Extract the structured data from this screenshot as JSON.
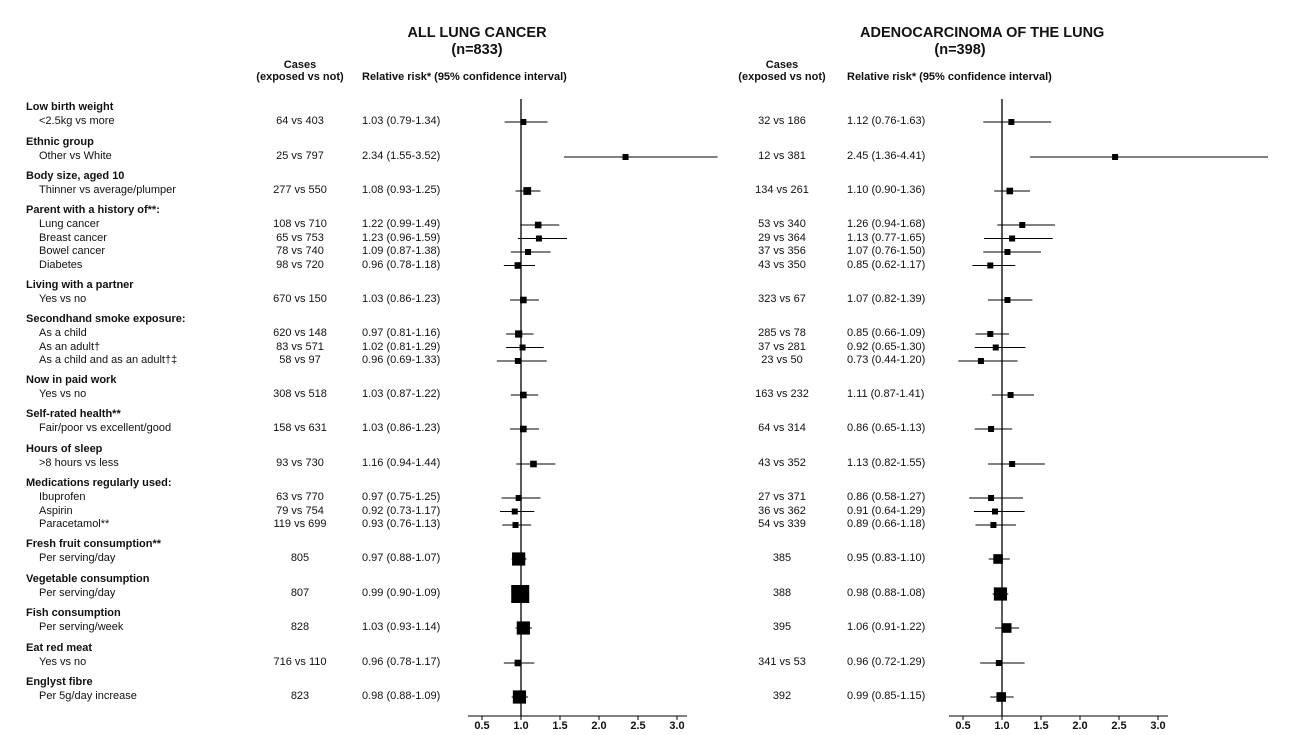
{
  "headers": {
    "cases": "Cases",
    "cases_sub": "(exposed vs not)",
    "rr": "Relative risk* (95% confidence interval)"
  },
  "groups": [
    {
      "label": "Low birth weight",
      "rows": [
        {
          "label": "<2.5kg vs more"
        }
      ]
    },
    {
      "label": "Ethnic group",
      "rows": [
        {
          "label": "Other vs White"
        }
      ]
    },
    {
      "label": "Body size, aged 10",
      "rows": [
        {
          "label": "Thinner vs average/plumper"
        }
      ]
    },
    {
      "label": "Parent with a history of**:",
      "rows": [
        {
          "label": "Lung cancer"
        },
        {
          "label": "Breast cancer"
        },
        {
          "label": "Bowel cancer"
        },
        {
          "label": "Diabetes"
        }
      ]
    },
    {
      "label": "Living with a partner",
      "rows": [
        {
          "label": "Yes vs no"
        }
      ]
    },
    {
      "label": "Secondhand smoke exposure:",
      "rows": [
        {
          "label": "As a child"
        },
        {
          "label": "As an adult†"
        },
        {
          "label": "As a child and as an adult†‡"
        }
      ]
    },
    {
      "label": "Now in paid work",
      "rows": [
        {
          "label": "Yes vs no"
        }
      ]
    },
    {
      "label": "Self-rated health**",
      "rows": [
        {
          "label": "Fair/poor vs excellent/good"
        }
      ]
    },
    {
      "label": "Hours of sleep",
      "rows": [
        {
          "label": ">8 hours vs less"
        }
      ]
    },
    {
      "label": "Medications regularly used:",
      "rows": [
        {
          "label": "Ibuprofen"
        },
        {
          "label": "Aspirin"
        },
        {
          "label": "Paracetamol**"
        }
      ]
    },
    {
      "label": "Fresh fruit consumption**",
      "rows": [
        {
          "label": "Per serving/day"
        }
      ]
    },
    {
      "label": "Vegetable consumption",
      "rows": [
        {
          "label": "Per serving/day"
        }
      ]
    },
    {
      "label": "Fish consumption",
      "rows": [
        {
          "label": "Per serving/week"
        }
      ]
    },
    {
      "label": "Eat red meat",
      "rows": [
        {
          "label": "Yes vs no"
        }
      ]
    },
    {
      "label": "Englyst fibre",
      "rows": [
        {
          "label": "Per 5g/day increase"
        }
      ]
    }
  ],
  "chart_data": [
    {
      "type": "forest",
      "title": "ALL LUNG CANCER",
      "subtitle": "(n=833)",
      "x_ticks": [
        "0.5",
        "1.0",
        "1.5",
        "2.0",
        "2.5",
        "3.0"
      ],
      "xlim": [
        0.5,
        3.0
      ],
      "reference_line": 1.0,
      "rows": [
        {
          "cases": "64 vs 403",
          "text": "1.03 (0.79-1.34)",
          "rr": 1.03,
          "lo": 0.79,
          "hi": 1.34,
          "size": 1
        },
        {
          "cases": "25 vs 797",
          "text": "2.34 (1.55-3.52)",
          "rr": 2.34,
          "lo": 1.55,
          "hi": 3.52,
          "size": 1
        },
        {
          "cases": "277 vs 550",
          "text": "1.08 (0.93-1.25)",
          "rr": 1.08,
          "lo": 0.93,
          "hi": 1.25,
          "size": 1.3
        },
        {
          "cases": "108 vs 710",
          "text": "1.22 (0.99-1.49)",
          "rr": 1.22,
          "lo": 0.99,
          "hi": 1.49,
          "size": 1.1
        },
        {
          "cases": "65 vs 753",
          "text": "1.23 (0.96-1.59)",
          "rr": 1.23,
          "lo": 0.96,
          "hi": 1.59,
          "size": 1
        },
        {
          "cases": "78 vs 740",
          "text": "1.09 (0.87-1.38)",
          "rr": 1.09,
          "lo": 0.87,
          "hi": 1.38,
          "size": 1
        },
        {
          "cases": "98 vs 720",
          "text": "0.96 (0.78-1.18)",
          "rr": 0.96,
          "lo": 0.78,
          "hi": 1.18,
          "size": 1.1
        },
        {
          "cases": "670 vs 150",
          "text": "1.03 (0.86-1.23)",
          "rr": 1.03,
          "lo": 0.86,
          "hi": 1.23,
          "size": 1.1
        },
        {
          "cases": "620 vs 148",
          "text": "0.97 (0.81-1.16)",
          "rr": 0.97,
          "lo": 0.81,
          "hi": 1.16,
          "size": 1.2
        },
        {
          "cases": "83 vs 571",
          "text": "1.02 (0.81-1.29)",
          "rr": 1.02,
          "lo": 0.81,
          "hi": 1.29,
          "size": 1
        },
        {
          "cases": "58 vs 97",
          "text": "0.96 (0.69-1.33)",
          "rr": 0.96,
          "lo": 0.69,
          "hi": 1.33,
          "size": 1
        },
        {
          "cases": "308 vs 518",
          "text": "1.03 (0.87-1.22)",
          "rr": 1.03,
          "lo": 0.87,
          "hi": 1.22,
          "size": 1.1
        },
        {
          "cases": "158 vs 631",
          "text": "1.03 (0.86-1.23)",
          "rr": 1.03,
          "lo": 0.86,
          "hi": 1.23,
          "size": 1.1
        },
        {
          "cases": "93 vs 730",
          "text": "1.16 (0.94-1.44)",
          "rr": 1.16,
          "lo": 0.94,
          "hi": 1.44,
          "size": 1.1
        },
        {
          "cases": "63 vs 770",
          "text": "0.97 (0.75-1.25)",
          "rr": 0.97,
          "lo": 0.75,
          "hi": 1.25,
          "size": 1
        },
        {
          "cases": "79 vs 754",
          "text": "0.92 (0.73-1.17)",
          "rr": 0.92,
          "lo": 0.73,
          "hi": 1.17,
          "size": 1
        },
        {
          "cases": "119 vs 699",
          "text": "0.93 (0.76-1.13)",
          "rr": 0.93,
          "lo": 0.76,
          "hi": 1.13,
          "size": 1
        },
        {
          "cases": "805",
          "text": "0.97 (0.88-1.07)",
          "rr": 0.97,
          "lo": 0.88,
          "hi": 1.07,
          "size": 2.2
        },
        {
          "cases": "807",
          "text": "0.99 (0.90-1.09)",
          "rr": 0.99,
          "lo": 0.9,
          "hi": 1.09,
          "size": 3
        },
        {
          "cases": "828",
          "text": "1.03 (0.93-1.14)",
          "rr": 1.03,
          "lo": 0.93,
          "hi": 1.14,
          "size": 2.2
        },
        {
          "cases": "716 vs 110",
          "text": "0.96 (0.78-1.17)",
          "rr": 0.96,
          "lo": 0.78,
          "hi": 1.17,
          "size": 1.1
        },
        {
          "cases": "823",
          "text": "0.98 (0.88-1.09)",
          "rr": 0.98,
          "lo": 0.88,
          "hi": 1.09,
          "size": 2.2
        }
      ]
    },
    {
      "type": "forest",
      "title": "ADENOCARCINOMA OF THE LUNG",
      "subtitle": "(n=398)",
      "x_ticks": [
        "0.5",
        "1.0",
        "1.5",
        "2.0",
        "2.5",
        "3.0"
      ],
      "xlim": [
        0.5,
        3.0
      ],
      "reference_line": 1.0,
      "rows": [
        {
          "cases": "32 vs 186",
          "text": "1.12 (0.76-1.63)",
          "rr": 1.12,
          "lo": 0.76,
          "hi": 1.63,
          "size": 1
        },
        {
          "cases": "12 vs 381",
          "text": "2.45 (1.36-4.41)",
          "rr": 2.45,
          "lo": 1.36,
          "hi": 4.41,
          "size": 1
        },
        {
          "cases": "134 vs 261",
          "text": "1.10 (0.90-1.36)",
          "rr": 1.1,
          "lo": 0.9,
          "hi": 1.36,
          "size": 1.1
        },
        {
          "cases": "53 vs 340",
          "text": "1.26 (0.94-1.68)",
          "rr": 1.26,
          "lo": 0.94,
          "hi": 1.68,
          "size": 1
        },
        {
          "cases": "29 vs 364",
          "text": "1.13 (0.77-1.65)",
          "rr": 1.13,
          "lo": 0.77,
          "hi": 1.65,
          "size": 1
        },
        {
          "cases": "37 vs 356",
          "text": "1.07 (0.76-1.50)",
          "rr": 1.07,
          "lo": 0.76,
          "hi": 1.5,
          "size": 1
        },
        {
          "cases": "43 vs 350",
          "text": "0.85 (0.62-1.17)",
          "rr": 0.85,
          "lo": 0.62,
          "hi": 1.17,
          "size": 1
        },
        {
          "cases": "323 vs 67",
          "text": "1.07 (0.82-1.39)",
          "rr": 1.07,
          "lo": 0.82,
          "hi": 1.39,
          "size": 1
        },
        {
          "cases": "285 vs 78",
          "text": "0.85 (0.66-1.09)",
          "rr": 0.85,
          "lo": 0.66,
          "hi": 1.09,
          "size": 1
        },
        {
          "cases": "37 vs 281",
          "text": "0.92 (0.65-1.30)",
          "rr": 0.92,
          "lo": 0.65,
          "hi": 1.3,
          "size": 1
        },
        {
          "cases": "23 vs 50",
          "text": "0.73 (0.44-1.20)",
          "rr": 0.73,
          "lo": 0.44,
          "hi": 1.2,
          "size": 1
        },
        {
          "cases": "163 vs 232",
          "text": "1.11 (0.87-1.41)",
          "rr": 1.11,
          "lo": 0.87,
          "hi": 1.41,
          "size": 1
        },
        {
          "cases": "64 vs 314",
          "text": "0.86 (0.65-1.13)",
          "rr": 0.86,
          "lo": 0.65,
          "hi": 1.13,
          "size": 1
        },
        {
          "cases": "43 vs 352",
          "text": "1.13 (0.82-1.55)",
          "rr": 1.13,
          "lo": 0.82,
          "hi": 1.55,
          "size": 1
        },
        {
          "cases": "27 vs 371",
          "text": "0.86 (0.58-1.27)",
          "rr": 0.86,
          "lo": 0.58,
          "hi": 1.27,
          "size": 1
        },
        {
          "cases": "36 vs 362",
          "text": "0.91 (0.64-1.29)",
          "rr": 0.91,
          "lo": 0.64,
          "hi": 1.29,
          "size": 1
        },
        {
          "cases": "54 vs 339",
          "text": "0.89 (0.66-1.18)",
          "rr": 0.89,
          "lo": 0.66,
          "hi": 1.18,
          "size": 1
        },
        {
          "cases": "385",
          "text": "0.95 (0.83-1.10)",
          "rr": 0.95,
          "lo": 0.83,
          "hi": 1.1,
          "size": 1.6
        },
        {
          "cases": "388",
          "text": "0.98 (0.88-1.08)",
          "rr": 0.98,
          "lo": 0.88,
          "hi": 1.08,
          "size": 2.2
        },
        {
          "cases": "395",
          "text": "1.06 (0.91-1.22)",
          "rr": 1.06,
          "lo": 0.91,
          "hi": 1.22,
          "size": 1.6
        },
        {
          "cases": "341 vs 53",
          "text": "0.96 (0.72-1.29)",
          "rr": 0.96,
          "lo": 0.72,
          "hi": 1.29,
          "size": 1
        },
        {
          "cases": "392",
          "text": "0.99 (0.85-1.15)",
          "rr": 0.99,
          "lo": 0.85,
          "hi": 1.15,
          "size": 1.6
        }
      ]
    }
  ]
}
